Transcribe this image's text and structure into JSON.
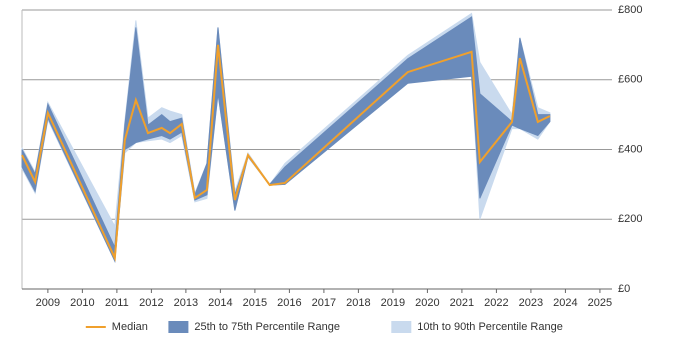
{
  "chart_data": {
    "type": "line",
    "x": [
      2008.25,
      2008.63,
      2009.0,
      2010.94,
      2011.23,
      2011.55,
      2011.9,
      2012.3,
      2012.54,
      2012.88,
      2013.26,
      2013.61,
      2013.93,
      2014.42,
      2014.8,
      2015.43,
      2015.87,
      2019.43,
      2021.28,
      2021.52,
      2022.45,
      2022.68,
      2023.2,
      2023.55
    ],
    "series": [
      {
        "name": "10th to 90th Percentile Range",
        "color": "#c9daee",
        "kind": "band",
        "low": [
          345,
          275,
          485,
          80,
          390,
          420,
          425,
          430,
          420,
          440,
          250,
          260,
          560,
          225,
          378,
          298,
          300,
          590,
          620,
          200,
          460,
          460,
          430,
          480
        ],
        "high": [
          405,
          335,
          535,
          180,
          480,
          770,
          490,
          520,
          510,
          500,
          275,
          360,
          750,
          280,
          390,
          300,
          360,
          670,
          790,
          650,
          500,
          720,
          520,
          505
        ]
      },
      {
        "name": "25th to 75th Percentile Range",
        "color": "#6a8bbb",
        "kind": "band",
        "low": [
          350,
          280,
          490,
          80,
          400,
          420,
          430,
          440,
          430,
          450,
          255,
          270,
          560,
          225,
          380,
          298,
          300,
          590,
          610,
          260,
          470,
          460,
          440,
          480
        ],
        "high": [
          400,
          330,
          530,
          120,
          470,
          750,
          470,
          500,
          480,
          490,
          270,
          360,
          750,
          270,
          384,
          300,
          350,
          660,
          780,
          560,
          480,
          720,
          500,
          500
        ]
      },
      {
        "name": "Median",
        "color": "#f0a02c",
        "kind": "line",
        "values": [
          384,
          307,
          505,
          89,
          427,
          542,
          447,
          462,
          447,
          473,
          261,
          284,
          700,
          255,
          384,
          298,
          304,
          622,
          680,
          364,
          479,
          662,
          479,
          496
        ]
      }
    ],
    "xlim": [
      2008.25,
      2025.35
    ],
    "xticks": [
      2009,
      2010,
      2011,
      2012,
      2013,
      2014,
      2015,
      2016,
      2017,
      2018,
      2019,
      2020,
      2021,
      2022,
      2023,
      2024,
      2025
    ],
    "ylim": [
      0,
      800
    ],
    "yticks": [
      {
        "value": 0,
        "label": "£0"
      },
      {
        "value": 200,
        "label": "£200"
      },
      {
        "value": 400,
        "label": "£400"
      },
      {
        "value": 600,
        "label": "£600"
      },
      {
        "value": 800,
        "label": "£800"
      }
    ],
    "grid": true,
    "legend": "bottom"
  }
}
